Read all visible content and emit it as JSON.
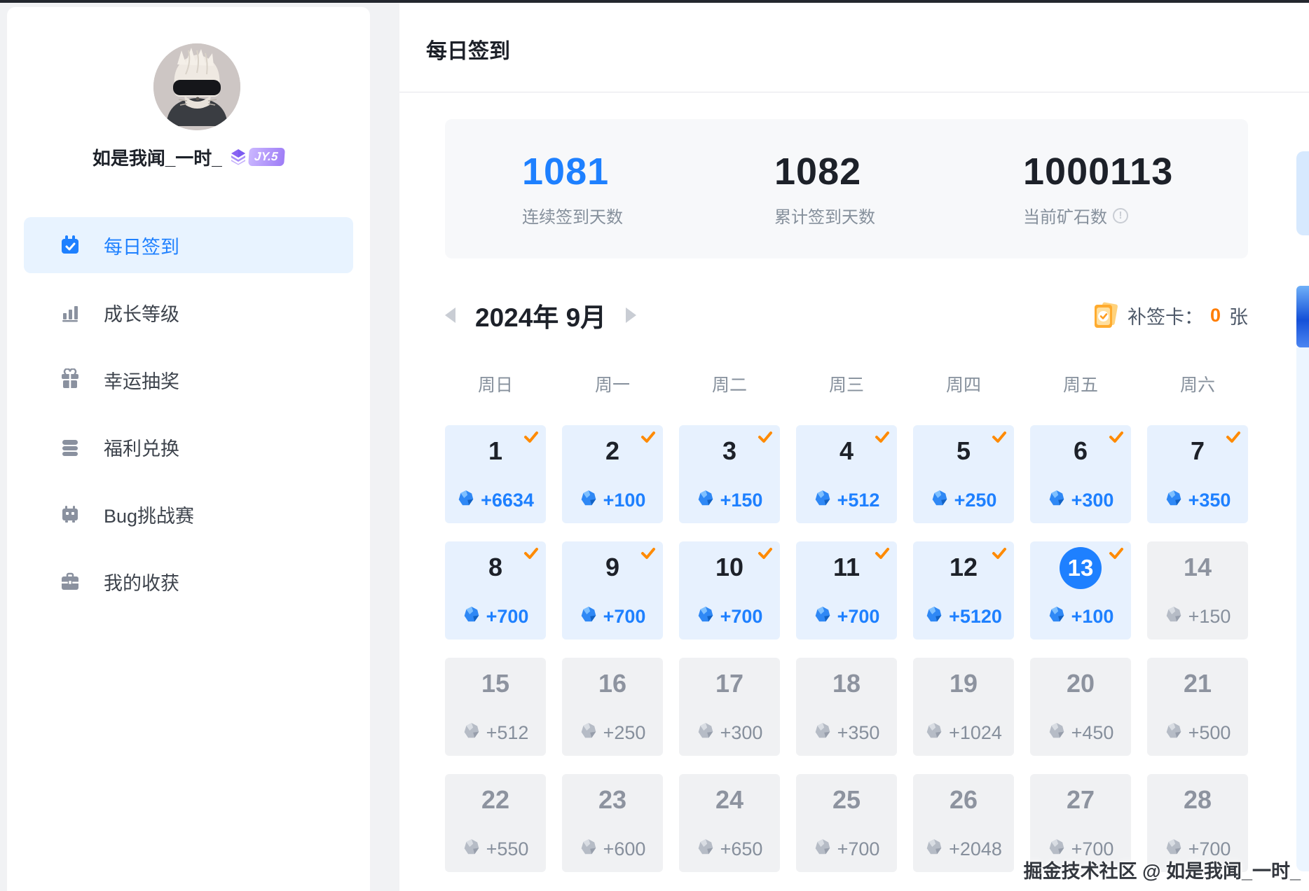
{
  "user": {
    "name": "如是我闻_一时_",
    "badge": "JY.5"
  },
  "sidebar": {
    "items": [
      {
        "id": "daily-checkin",
        "label": "每日签到",
        "icon": "calendar-check-icon",
        "active": true
      },
      {
        "id": "growth-level",
        "label": "成长等级",
        "icon": "bar-chart-icon",
        "active": false
      },
      {
        "id": "lucky-draw",
        "label": "幸运抽奖",
        "icon": "gift-icon",
        "active": false
      },
      {
        "id": "welfare-exchange",
        "label": "福利兑换",
        "icon": "coins-icon",
        "active": false
      },
      {
        "id": "bug-challenge",
        "label": "Bug挑战赛",
        "icon": "bug-icon",
        "active": false
      },
      {
        "id": "my-harvest",
        "label": "我的收获",
        "icon": "briefcase-icon",
        "active": false
      }
    ]
  },
  "header": {
    "title": "每日签到"
  },
  "stats": [
    {
      "value": "1081",
      "label": "连续签到天数",
      "accent": true,
      "info": false
    },
    {
      "value": "1082",
      "label": "累计签到天数",
      "accent": false,
      "info": false
    },
    {
      "value": "1000113",
      "label": "当前矿石数",
      "accent": false,
      "info": true
    }
  ],
  "calendar": {
    "month_label": "2024年 9月",
    "makeup_card": {
      "label": "补签卡：",
      "count": "0",
      "unit": "张"
    },
    "weekdays": [
      "周日",
      "周一",
      "周二",
      "周三",
      "周四",
      "周五",
      "周六"
    ],
    "days": [
      {
        "day": "1",
        "reward": "+6634",
        "state": "checked"
      },
      {
        "day": "2",
        "reward": "+100",
        "state": "checked"
      },
      {
        "day": "3",
        "reward": "+150",
        "state": "checked"
      },
      {
        "day": "4",
        "reward": "+512",
        "state": "checked"
      },
      {
        "day": "5",
        "reward": "+250",
        "state": "checked"
      },
      {
        "day": "6",
        "reward": "+300",
        "state": "checked"
      },
      {
        "day": "7",
        "reward": "+350",
        "state": "checked"
      },
      {
        "day": "8",
        "reward": "+700",
        "state": "checked"
      },
      {
        "day": "9",
        "reward": "+700",
        "state": "checked"
      },
      {
        "day": "10",
        "reward": "+700",
        "state": "checked"
      },
      {
        "day": "11",
        "reward": "+700",
        "state": "checked"
      },
      {
        "day": "12",
        "reward": "+5120",
        "state": "checked"
      },
      {
        "day": "13",
        "reward": "+100",
        "state": "today"
      },
      {
        "day": "14",
        "reward": "+150",
        "state": "future"
      },
      {
        "day": "15",
        "reward": "+512",
        "state": "future"
      },
      {
        "day": "16",
        "reward": "+250",
        "state": "future"
      },
      {
        "day": "17",
        "reward": "+300",
        "state": "future"
      },
      {
        "day": "18",
        "reward": "+350",
        "state": "future"
      },
      {
        "day": "19",
        "reward": "+1024",
        "state": "future"
      },
      {
        "day": "20",
        "reward": "+450",
        "state": "future"
      },
      {
        "day": "21",
        "reward": "+500",
        "state": "future"
      },
      {
        "day": "22",
        "reward": "+550",
        "state": "future"
      },
      {
        "day": "23",
        "reward": "+600",
        "state": "future"
      },
      {
        "day": "24",
        "reward": "+650",
        "state": "future"
      },
      {
        "day": "25",
        "reward": "+700",
        "state": "future"
      },
      {
        "day": "26",
        "reward": "+2048",
        "state": "future"
      },
      {
        "day": "27",
        "reward": "+700",
        "state": "future"
      },
      {
        "day": "28",
        "reward": "+700",
        "state": "future"
      }
    ]
  },
  "watermark": "掘金技术社区 @ 如是我闻_一时_",
  "colors": {
    "accent_blue": "#1e80ff",
    "check_orange": "#ff8a00",
    "count_orange": "#ff7d00",
    "checked_cell_bg": "#e7f1fe",
    "future_cell_bg": "#f0f1f3",
    "muted_text": "#86909c"
  }
}
